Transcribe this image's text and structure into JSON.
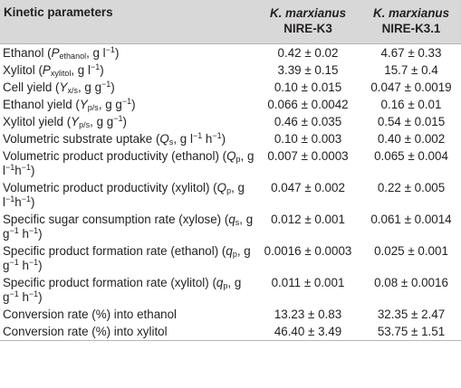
{
  "header": {
    "param": "Kinetic parameters",
    "col1_species": "K. marxianus",
    "col1_strain": "NIRE-K3",
    "col2_species": "K. marxianus",
    "col2_strain": "NIRE-K3.1"
  },
  "rows": [
    {
      "label": "Ethanol (Pethanol, g l−1)",
      "k3": "0.42 ± 0.02",
      "k31": "4.67 ± 0.33"
    },
    {
      "label": "Xylitol (Pxylitol, g l−1)",
      "k3": "3.39 ± 0.15",
      "k31": "15.7 ± 0.4"
    },
    {
      "label": "Cell yield (Yx/s, g g−1)",
      "k3": "0.10 ± 0.015",
      "k31": "0.047 ± 0.0019"
    },
    {
      "label": "Ethanol yield (Yp/s, g g−1)",
      "k3": "0.066 ± 0.0042",
      "k31": "0.16 ± 0.01"
    },
    {
      "label": "Xylitol yield (Yp/s, g g−1)",
      "k3": "0.46 ± 0.035",
      "k31": "0.54 ± 0.015"
    },
    {
      "label": "Volumetric substrate uptake (Qs, g l−1 h−1)",
      "k3": "0.10 ± 0.003",
      "k31": "0.40 ± 0.002"
    },
    {
      "label": "Volumetric product productivity (ethanol) (Qp, g l−1h−1)",
      "k3": "0.007 ± 0.0003",
      "k31": "0.065 ± 0.004"
    },
    {
      "label": "Volumetric product productivity (xylitol) (Qp, g l−1h−1)",
      "k3": "0.047 ± 0.002",
      "k31": "0.22 ± 0.005"
    },
    {
      "label": "Specific sugar consumption rate (xylose) (qs, g g−1 h−1)",
      "k3": "0.012 ± 0.001",
      "k31": "0.061 ± 0.0014"
    },
    {
      "label": "Specific product formation rate (ethanol) (qp, g g−1 h−1)",
      "k3": "0.0016 ± 0.0003",
      "k31": "0.025 ± 0.001"
    },
    {
      "label": "Specific product formation rate (xylitol) (qp, g g−1 h−1)",
      "k3": "0.011 ± 0.001",
      "k31": "0.08 ± 0.0016"
    },
    {
      "label": "Conversion rate (%) into ethanol",
      "k3": "13.23 ± 0.83",
      "k31": "32.35 ± 2.47"
    },
    {
      "label": "Conversion rate (%) into xylitol",
      "k3": "46.40 ± 3.49",
      "k31": "53.75 ± 1.51"
    }
  ]
}
